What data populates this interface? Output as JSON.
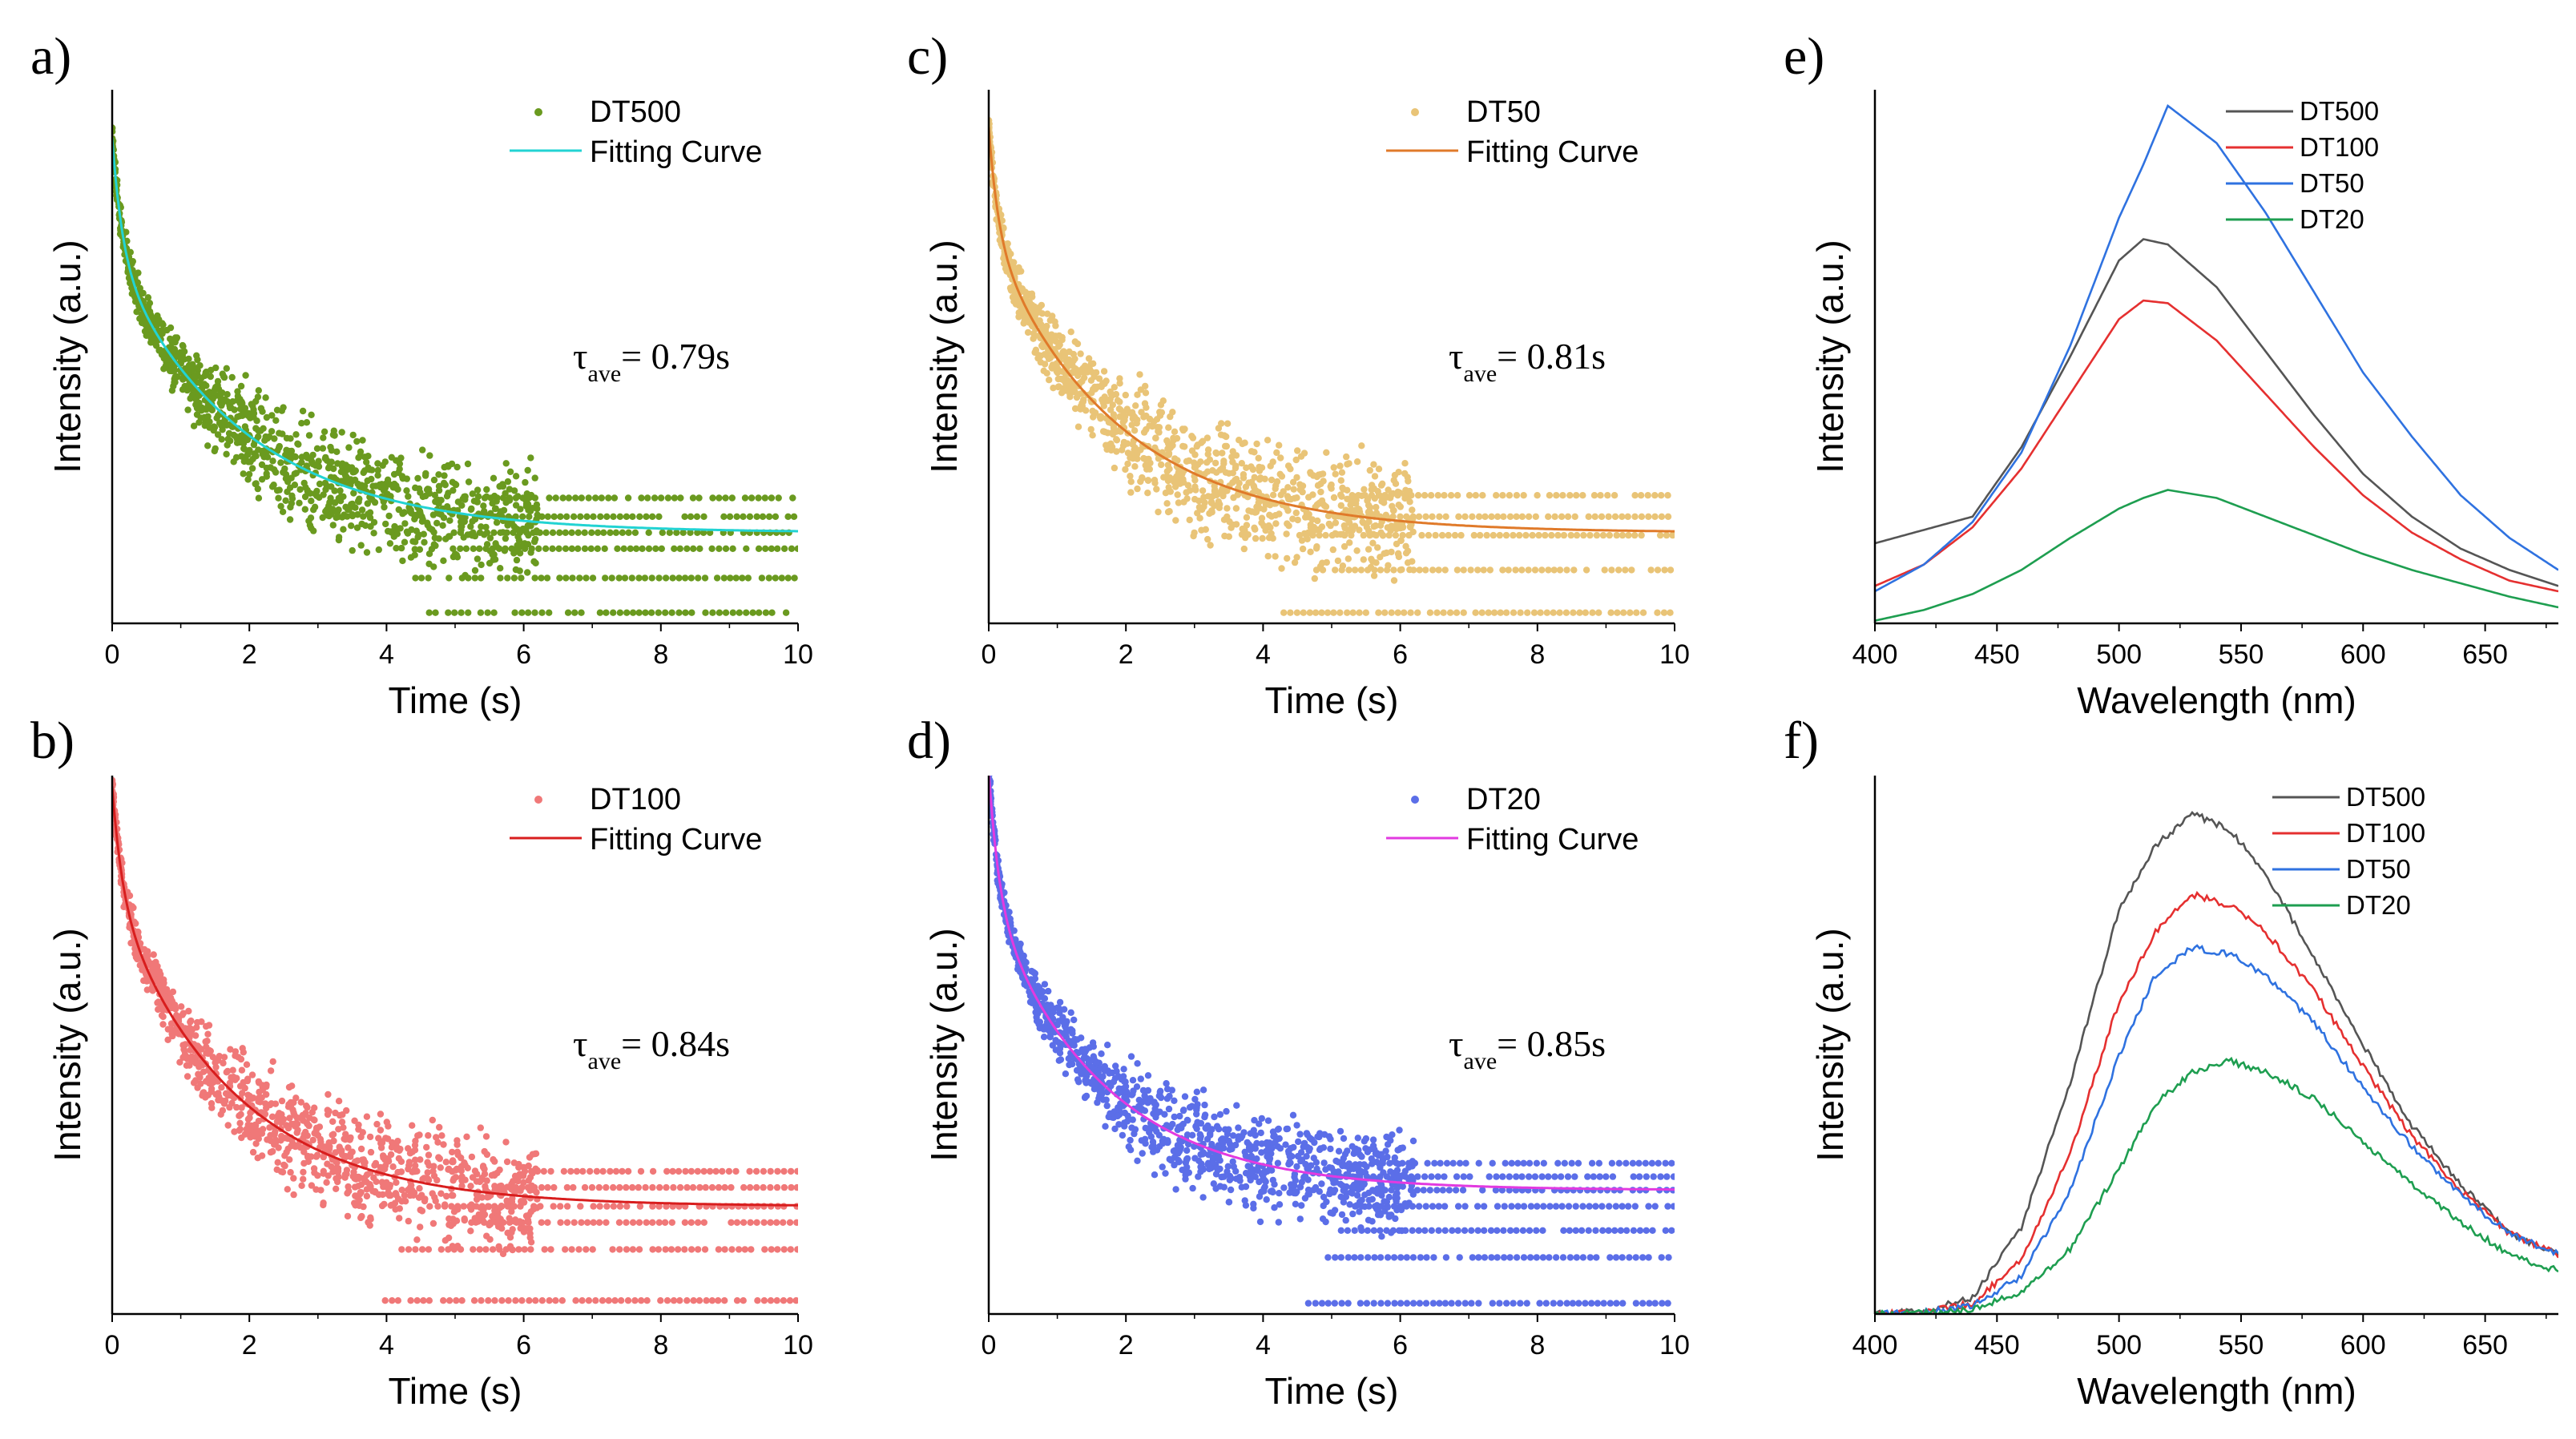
{
  "chart_data": [
    {
      "id": "a",
      "type": "scatter",
      "panel_label": "a)",
      "xlabel": "Time (s)",
      "ylabel": "Intensity (a.u.)",
      "xlim": [
        0,
        10
      ],
      "ylim": [
        0,
        1
      ],
      "xticks": [
        0,
        2,
        4,
        6,
        8,
        10
      ],
      "legend_position": "top-right",
      "series": [
        {
          "name": "DT500",
          "role": "data",
          "color": "#6a9a1f",
          "model": {
            "a1": 0.22,
            "t1": 0.15,
            "a2": 0.52,
            "t2": 1.9,
            "floor": 0.17
          },
          "spread": 0.09,
          "levels": [
            0.02,
            0.085,
            0.14,
            0.17,
            0.2,
            0.235
          ]
        },
        {
          "name": "Fitting Curve",
          "role": "fit",
          "color": "#22d3d3",
          "model": {
            "a1": 0.22,
            "t1": 0.15,
            "a2": 0.52,
            "t2": 1.9,
            "floor": 0.17
          }
        }
      ],
      "annotation": {
        "symbol": "τ",
        "sub": "ave",
        "text": "= 0.79s",
        "value": 0.79,
        "unit": "s"
      }
    },
    {
      "id": "c",
      "type": "scatter",
      "panel_label": "c)",
      "xlabel": "Time (s)",
      "ylabel": "Intensity (a.u.)",
      "xlim": [
        0,
        10
      ],
      "ylim": [
        0,
        1
      ],
      "xticks": [
        0,
        2,
        4,
        6,
        8,
        10
      ],
      "legend_position": "top-right",
      "series": [
        {
          "name": "DT50",
          "role": "data",
          "color": "#e9c477",
          "model": {
            "a1": 0.2,
            "t1": 0.14,
            "a2": 0.56,
            "t2": 1.85,
            "floor": 0.17
          },
          "spread": 0.1,
          "levels": [
            0.02,
            0.1,
            0.165,
            0.2,
            0.24
          ]
        },
        {
          "name": "Fitting Curve",
          "role": "fit",
          "color": "#e07a2a",
          "model": {
            "a1": 0.2,
            "t1": 0.14,
            "a2": 0.56,
            "t2": 1.85,
            "floor": 0.17
          }
        }
      ],
      "annotation": {
        "symbol": "τ",
        "sub": "ave",
        "text": "= 0.81s",
        "value": 0.81,
        "unit": "s"
      }
    },
    {
      "id": "b",
      "type": "scatter",
      "panel_label": "b)",
      "xlabel": "Time (s)",
      "ylabel": "Intensity (a.u.)",
      "xlim": [
        0,
        10
      ],
      "ylim": [
        0,
        1
      ],
      "xticks": [
        0,
        2,
        4,
        6,
        8,
        10
      ],
      "legend_position": "top-right",
      "series": [
        {
          "name": "DT100",
          "role": "data",
          "color": "#f07878",
          "model": {
            "a1": 0.2,
            "t1": 0.15,
            "a2": 0.58,
            "t2": 1.75,
            "floor": 0.2
          },
          "spread": 0.09,
          "levels": [
            0.025,
            0.12,
            0.17,
            0.2,
            0.235,
            0.265
          ]
        },
        {
          "name": "Fitting Curve",
          "role": "fit",
          "color": "#d81e1e",
          "model": {
            "a1": 0.2,
            "t1": 0.15,
            "a2": 0.58,
            "t2": 1.75,
            "floor": 0.2
          }
        }
      ],
      "annotation": {
        "symbol": "τ",
        "sub": "ave",
        "text": "= 0.84s",
        "value": 0.84,
        "unit": "s"
      }
    },
    {
      "id": "d",
      "type": "scatter",
      "panel_label": "d)",
      "xlabel": "Time (s)",
      "ylabel": "Intensity (a.u.)",
      "xlim": [
        0,
        10
      ],
      "ylim": [
        0,
        1
      ],
      "xticks": [
        0,
        2,
        4,
        6,
        8,
        10
      ],
      "legend_position": "top-right",
      "series": [
        {
          "name": "DT20",
          "role": "data",
          "color": "#5b6ee8",
          "model": {
            "a1": 0.24,
            "t1": 0.15,
            "a2": 0.54,
            "t2": 1.65,
            "floor": 0.23
          },
          "spread": 0.08,
          "levels": [
            0.02,
            0.105,
            0.155,
            0.2,
            0.23,
            0.255,
            0.28
          ]
        },
        {
          "name": "Fitting Curve",
          "role": "fit",
          "color": "#e23ae0",
          "model": {
            "a1": 0.24,
            "t1": 0.15,
            "a2": 0.54,
            "t2": 1.65,
            "floor": 0.23
          }
        }
      ],
      "annotation": {
        "symbol": "τ",
        "sub": "ave",
        "text": "= 0.85s",
        "value": 0.85,
        "unit": "s"
      }
    },
    {
      "id": "e",
      "type": "line",
      "panel_label": "e)",
      "xlabel": "Wavelength (nm)",
      "ylabel": "Intensity (a.u.)",
      "xlim": [
        400,
        680
      ],
      "ylim": [
        0,
        1
      ],
      "xticks": [
        400,
        450,
        500,
        550,
        600,
        650
      ],
      "legend_position": "top-right",
      "series": [
        {
          "name": "DT500",
          "color": "#555555",
          "x": [
            400,
            420,
            440,
            460,
            480,
            500,
            510,
            520,
            540,
            560,
            580,
            600,
            620,
            640,
            660,
            680
          ],
          "values": [
            0.15,
            0.175,
            0.2,
            0.33,
            0.5,
            0.68,
            0.72,
            0.71,
            0.63,
            0.51,
            0.39,
            0.28,
            0.2,
            0.14,
            0.1,
            0.07
          ]
        },
        {
          "name": "DT100",
          "color": "#e53030",
          "x": [
            400,
            420,
            440,
            460,
            480,
            500,
            510,
            520,
            540,
            560,
            580,
            600,
            620,
            640,
            660,
            680
          ],
          "values": [
            0.07,
            0.11,
            0.18,
            0.29,
            0.43,
            0.57,
            0.605,
            0.6,
            0.53,
            0.43,
            0.33,
            0.24,
            0.17,
            0.12,
            0.08,
            0.06
          ]
        },
        {
          "name": "DT50",
          "color": "#2f72e0",
          "x": [
            400,
            420,
            440,
            460,
            480,
            500,
            510,
            520,
            540,
            560,
            580,
            600,
            620,
            640,
            660,
            680
          ],
          "values": [
            0.06,
            0.11,
            0.19,
            0.32,
            0.52,
            0.76,
            0.86,
            0.97,
            0.9,
            0.77,
            0.62,
            0.47,
            0.35,
            0.24,
            0.16,
            0.1
          ]
        },
        {
          "name": "DT20",
          "color": "#1e9e50",
          "x": [
            400,
            420,
            440,
            460,
            480,
            500,
            510,
            520,
            540,
            560,
            580,
            600,
            620,
            640,
            660,
            680
          ],
          "values": [
            0.005,
            0.025,
            0.055,
            0.1,
            0.16,
            0.215,
            0.235,
            0.25,
            0.235,
            0.2,
            0.165,
            0.13,
            0.1,
            0.075,
            0.05,
            0.03
          ]
        }
      ]
    },
    {
      "id": "f",
      "type": "line",
      "panel_label": "f)",
      "xlabel": "Wavelength (nm)",
      "ylabel": "Intensity (a.u.)",
      "xlim": [
        400,
        680
      ],
      "ylim": [
        0,
        1
      ],
      "xticks": [
        400,
        450,
        500,
        550,
        600,
        650
      ],
      "legend_position": "top-right",
      "series": [
        {
          "name": "DT500",
          "color": "#555555",
          "x": [
            400,
            420,
            440,
            460,
            480,
            500,
            515,
            530,
            545,
            560,
            580,
            600,
            620,
            640,
            660,
            680
          ],
          "values": [
            0,
            0.005,
            0.03,
            0.16,
            0.43,
            0.75,
            0.87,
            0.93,
            0.9,
            0.82,
            0.66,
            0.5,
            0.35,
            0.24,
            0.15,
            0.11
          ]
        },
        {
          "name": "DT100",
          "color": "#e53030",
          "x": [
            400,
            420,
            440,
            460,
            480,
            500,
            515,
            530,
            545,
            560,
            580,
            600,
            620,
            640,
            660,
            680
          ],
          "values": [
            0,
            0.004,
            0.02,
            0.1,
            0.3,
            0.58,
            0.71,
            0.78,
            0.76,
            0.71,
            0.6,
            0.46,
            0.33,
            0.23,
            0.15,
            0.11
          ]
        },
        {
          "name": "DT50",
          "color": "#2f72e0",
          "x": [
            400,
            420,
            440,
            460,
            480,
            500,
            515,
            530,
            545,
            560,
            580,
            600,
            620,
            640,
            660,
            680
          ],
          "values": [
            0,
            0.003,
            0.015,
            0.07,
            0.23,
            0.48,
            0.63,
            0.68,
            0.67,
            0.63,
            0.54,
            0.42,
            0.31,
            0.22,
            0.15,
            0.11
          ]
        },
        {
          "name": "DT20",
          "color": "#1e9e50",
          "x": [
            400,
            420,
            440,
            460,
            480,
            500,
            515,
            530,
            545,
            560,
            580,
            600,
            620,
            640,
            660,
            680
          ],
          "values": [
            0,
            0.002,
            0.008,
            0.04,
            0.12,
            0.27,
            0.39,
            0.45,
            0.47,
            0.45,
            0.4,
            0.32,
            0.24,
            0.17,
            0.11,
            0.08
          ]
        }
      ]
    }
  ]
}
